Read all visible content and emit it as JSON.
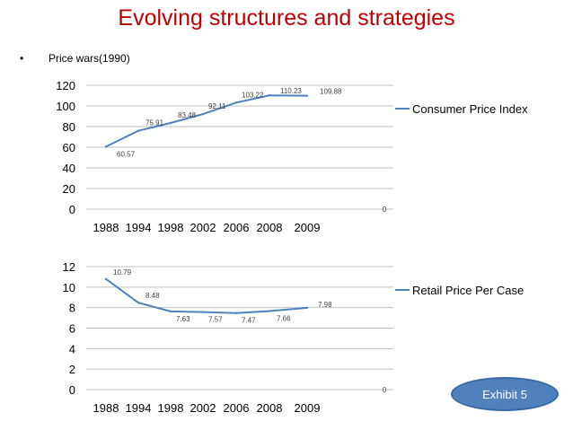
{
  "slide": {
    "title": "Evolving structures and strategies",
    "bullet_marker": "•",
    "bullet_text": "Price wars(1990)",
    "exhibit_label": "Exhibit 5"
  },
  "colors": {
    "title": "#c00000",
    "series": "#4f81bd",
    "gridline": "#bfbfbf",
    "exhibit_fill": "#4f81bd"
  },
  "chart_data": [
    {
      "type": "line",
      "title": "",
      "categories": [
        "1988",
        "1994",
        "1998",
        "2002",
        "2006",
        "2008",
        "2009"
      ],
      "series": [
        {
          "name": "Consumer Price Index",
          "values": [
            60.57,
            75.91,
            83.48,
            92.11,
            103.22,
            110.23,
            109.88
          ]
        }
      ],
      "data_labels": [
        "60.57",
        "75.91",
        "83.48",
        "92.11",
        "103.22",
        "110.23",
        "109.88"
      ],
      "extra_label": "0",
      "ylim": [
        0,
        120
      ],
      "yticks": [
        "0",
        "20",
        "40",
        "60",
        "80",
        "100",
        "120"
      ],
      "grid": true,
      "legend": "right",
      "xlabel": "",
      "ylabel": ""
    },
    {
      "type": "line",
      "title": "",
      "categories": [
        "1988",
        "1994",
        "1998",
        "2002",
        "2006",
        "2008",
        "2009"
      ],
      "series": [
        {
          "name": "Retail Price Per Case",
          "values": [
            10.79,
            8.48,
            7.63,
            7.57,
            7.47,
            7.66,
            7.98
          ]
        }
      ],
      "data_labels": [
        "10.79",
        "8.48",
        "7.63",
        "7.57",
        "7.47",
        "7.66",
        "7.98"
      ],
      "extra_label": "0",
      "ylim": [
        0,
        12
      ],
      "yticks": [
        "0",
        "2",
        "4",
        "6",
        "8",
        "10",
        "12"
      ],
      "grid": true,
      "legend": "right",
      "xlabel": "",
      "ylabel": ""
    }
  ]
}
